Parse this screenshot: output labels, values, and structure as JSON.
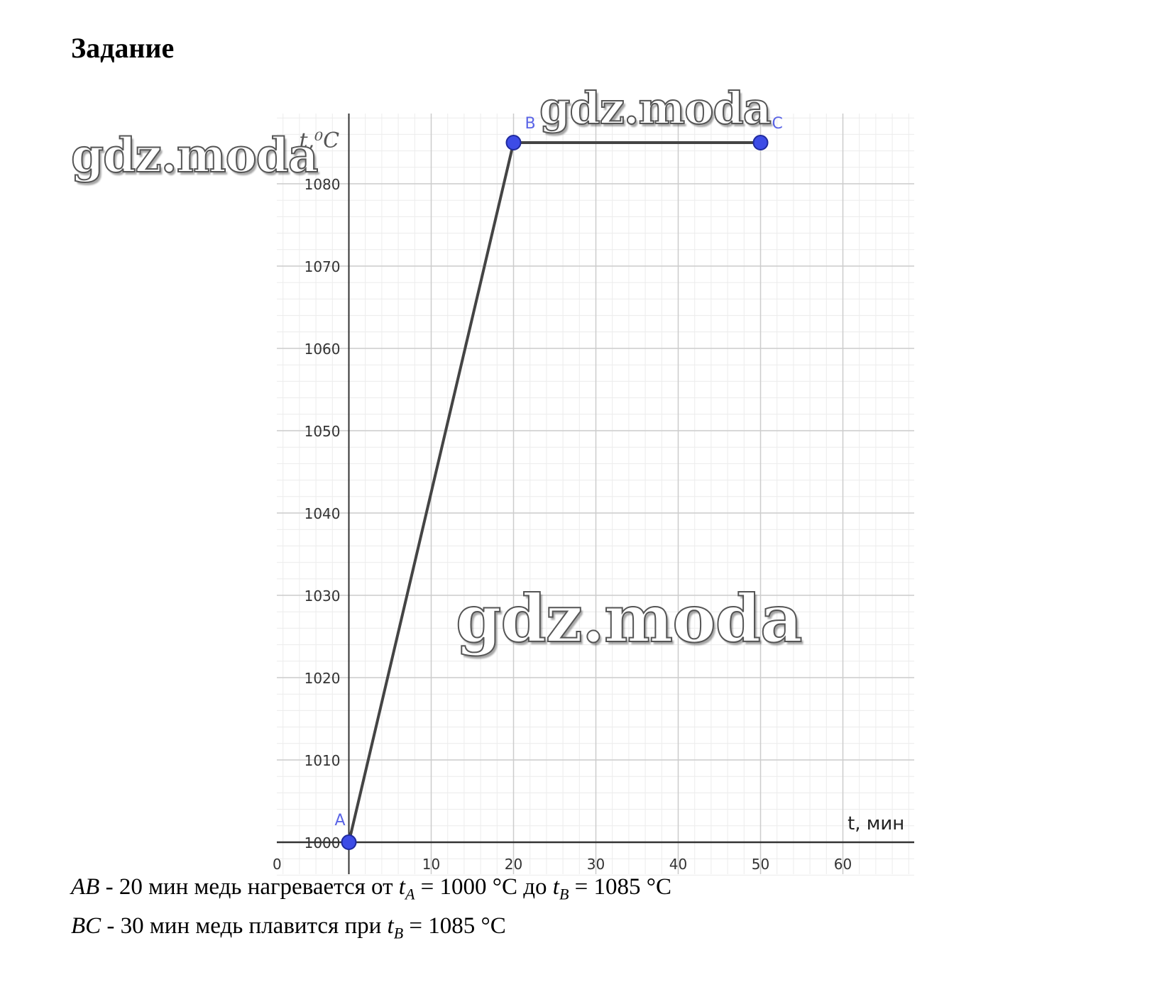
{
  "page": {
    "heading": "Задание",
    "watermarks": [
      "gdz.moda",
      "gdz.moda",
      "gdz.moda"
    ]
  },
  "chart_data": {
    "type": "line",
    "title": "",
    "xlabel": "t, мин",
    "ylabel": "t,⁰C",
    "xlim": [
      -8.8,
      68
    ],
    "ylim": [
      1000,
      1088.5
    ],
    "x_ticks": [
      0,
      10,
      20,
      30,
      40,
      50,
      60
    ],
    "x_tick_labels": [
      "0",
      "10",
      "20",
      "30",
      "40",
      "50",
      "60"
    ],
    "y_ticks": [
      1000,
      1010,
      1020,
      1030,
      1040,
      1050,
      1060,
      1070,
      1080
    ],
    "y_tick_labels": [
      "1000",
      "1010",
      "1020",
      "1030",
      "1040",
      "1050",
      "1060",
      "1070",
      "1080"
    ],
    "grid": true,
    "series": [
      {
        "points": [
          {
            "label": "A",
            "x": 0,
            "y": 1000
          },
          {
            "label": "B",
            "x": 20,
            "y": 1085
          },
          {
            "label": "C",
            "x": 50,
            "y": 1085
          }
        ]
      }
    ],
    "colors": {
      "line": "#444444",
      "point": "#3d4ce6",
      "point_label": "#5a64e6",
      "grid_major": "#cccccc",
      "grid_minor": "#ececec",
      "axis": "#333333"
    }
  },
  "captions": {
    "line1": {
      "seg": "AB",
      "text": " - 20 мин медь нагревается от ",
      "t1": "t",
      "sub1": "A",
      "val1": " = 1000 °C",
      "mid": " до ",
      "t2": "t",
      "sub2": "B",
      "val2": " = 1085 °C"
    },
    "line2": {
      "seg": "BC",
      "text": " - 30 мин медь плавится при ",
      "t1": "t",
      "sub1": "B",
      "val1": " = 1085 °C"
    }
  }
}
